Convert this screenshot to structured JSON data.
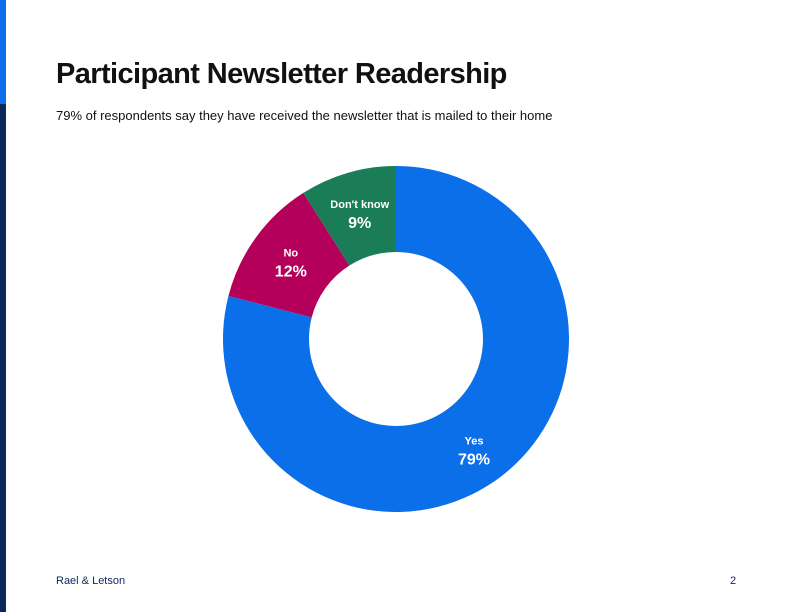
{
  "slide": {
    "title": "Participant Newsletter Readership",
    "subtitle": "79% of respondents say they have received the newsletter that is mailed to their home",
    "footer_left": "Rael & Letson",
    "page_number": "2"
  },
  "chart_data": {
    "type": "pie",
    "donut": true,
    "slices": [
      {
        "label": "Yes",
        "value": 79,
        "value_label": "79%",
        "color": "#0a6fe8"
      },
      {
        "label": "No",
        "value": 12,
        "value_label": "12%",
        "color": "#b5005b"
      },
      {
        "label": "Don't know",
        "value": 9,
        "value_label": "9%",
        "color": "#1a7d58"
      }
    ],
    "start_angle_deg": 0,
    "direction": "clockwise",
    "legend": "none"
  },
  "colors": {
    "accent_dark": "#0b2a5b",
    "accent_blue": "#0a6fe8"
  }
}
